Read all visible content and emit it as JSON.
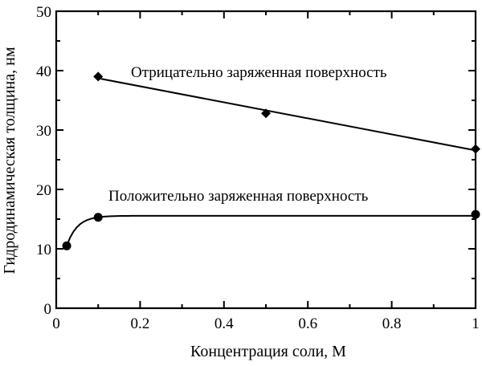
{
  "chart_data": {
    "type": "line",
    "title": "",
    "xlabel": "Концентрация соли, М",
    "ylabel": "Гидродинамическая толщина, нм",
    "xlim": [
      0,
      1
    ],
    "ylim": [
      0,
      50
    ],
    "x_ticks": [
      0,
      0.2,
      0.4,
      0.6,
      0.8,
      1
    ],
    "x_tick_labels": [
      "0",
      "0.2",
      "0.4",
      "0.6",
      "0.8",
      "1"
    ],
    "y_ticks": [
      0,
      10,
      20,
      30,
      40,
      50
    ],
    "y_tick_labels": [
      "0",
      "10",
      "20",
      "30",
      "40",
      "50"
    ],
    "grid": false,
    "series": [
      {
        "name": "Отрицательно заряженная поверхность",
        "marker": "diamond",
        "points": [
          {
            "x": 0.1,
            "y": 39
          },
          {
            "x": 0.5,
            "y": 32.8
          },
          {
            "x": 1.0,
            "y": 26.8
          }
        ],
        "fit": "linear"
      },
      {
        "name": "Положительно заряженная поверхность",
        "marker": "circle",
        "points": [
          {
            "x": 0.025,
            "y": 10.5
          },
          {
            "x": 0.1,
            "y": 15.3
          },
          {
            "x": 1.0,
            "y": 15.8
          }
        ],
        "fit": "saturation"
      }
    ],
    "annotations": [
      {
        "text": "Отрицательно заряженная поверхность",
        "series": 0
      },
      {
        "text": "Положительно заряженная поверхность",
        "series": 1
      }
    ]
  }
}
